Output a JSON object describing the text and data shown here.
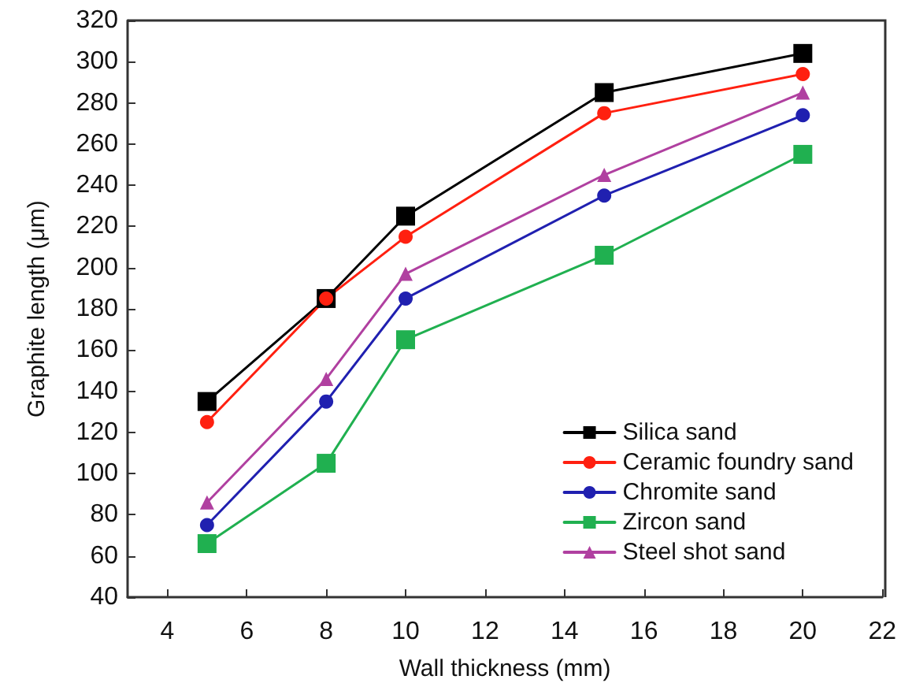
{
  "chart_data": {
    "type": "line",
    "xlabel": "Wall thickness (mm)",
    "ylabel": "Graphite length (μm)",
    "x": [
      5,
      8,
      10,
      15,
      20
    ],
    "series": [
      {
        "name": "Silica sand",
        "color": "#000000",
        "marker": "square",
        "values": [
          135,
          185,
          225,
          285,
          304
        ]
      },
      {
        "name": "Ceramic foundry sand",
        "color": "#ff2010",
        "marker": "circle",
        "values": [
          125,
          185,
          215,
          275,
          294
        ]
      },
      {
        "name": "Chromite sand",
        "color": "#2020b0",
        "marker": "circle",
        "values": [
          75,
          135,
          185,
          235,
          274
        ]
      },
      {
        "name": "Zircon sand",
        "color": "#20b050",
        "marker": "square",
        "values": [
          66,
          105,
          165,
          206,
          255
        ]
      },
      {
        "name": "Steel shot sand",
        "color": "#b040a0",
        "marker": "triangle",
        "values": [
          86,
          146,
          197,
          245,
          285
        ]
      }
    ],
    "xlim": [
      3,
      22
    ],
    "xticks": [
      4,
      6,
      8,
      10,
      12,
      14,
      16,
      18,
      20,
      22
    ],
    "ylim": [
      40,
      320
    ],
    "yticks": [
      40,
      60,
      80,
      100,
      120,
      140,
      160,
      180,
      200,
      220,
      240,
      260,
      280,
      300,
      320
    ],
    "grid": false,
    "legend": "bottom right"
  }
}
